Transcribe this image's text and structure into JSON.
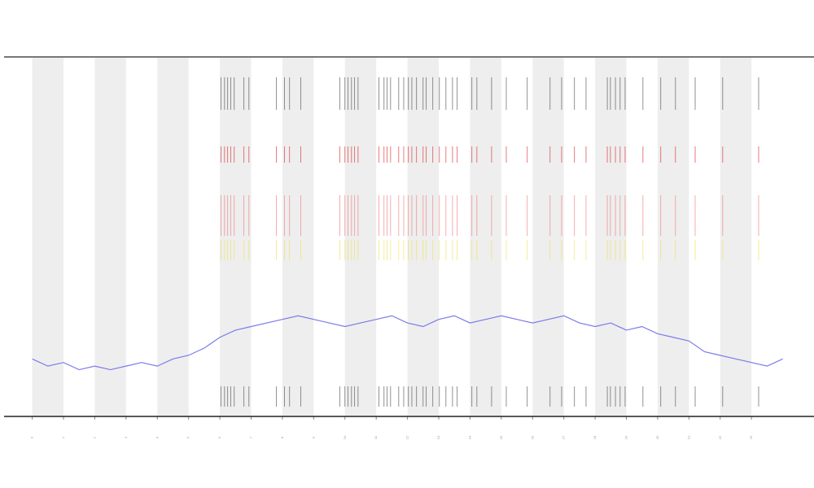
{
  "chart_data": {
    "type": "line",
    "x": [
      0,
      0.5,
      1,
      1.5,
      2,
      2.5,
      3,
      3.5,
      4,
      4.5,
      5,
      5.5,
      6,
      6.5,
      7,
      7.5,
      8,
      8.5,
      9,
      9.5,
      10,
      10.5,
      11,
      11.5,
      12,
      12.5,
      13,
      13.5,
      14,
      14.5,
      15,
      15.5,
      16,
      16.5,
      17,
      17.5,
      18,
      18.5,
      19,
      19.5,
      20,
      20.5,
      21,
      21.5,
      22,
      22.5,
      23,
      23.5,
      24
    ],
    "series": [
      {
        "color": "#7b7bea",
        "values": [
          16,
          14,
          15,
          13,
          14,
          13,
          14,
          15,
          14,
          16,
          17,
          19,
          22,
          24,
          25,
          26,
          27,
          28,
          27,
          26,
          25,
          26,
          27,
          28,
          26,
          25,
          27,
          28,
          26,
          27,
          28,
          27,
          26,
          27,
          28,
          26,
          25,
          26,
          24,
          25,
          23,
          22,
          21,
          18,
          17,
          16,
          15,
          14,
          16
        ]
      }
    ],
    "bands": [
      [
        0,
        1
      ],
      [
        2,
        3
      ],
      [
        4,
        5
      ],
      [
        6,
        7
      ],
      [
        8,
        9
      ],
      [
        10,
        11
      ],
      [
        12,
        13
      ],
      [
        14,
        15
      ],
      [
        16,
        17
      ],
      [
        18,
        19
      ],
      [
        20,
        21
      ],
      [
        22,
        23
      ]
    ],
    "band_color": "#eeeeee",
    "events": [
      6.04,
      6.15,
      6.25,
      6.35,
      6.46,
      6.77,
      6.93,
      7.81,
      8.07,
      8.23,
      8.59,
      9.84,
      10.0,
      10.1,
      10.21,
      10.31,
      10.42,
      11.09,
      11.25,
      11.35,
      11.46,
      11.72,
      11.88,
      12.03,
      12.14,
      12.29,
      12.5,
      12.6,
      12.81,
      13.02,
      13.23,
      13.44,
      13.59,
      14.06,
      14.22,
      14.69,
      15.16,
      15.83,
      16.56,
      16.93,
      17.34,
      17.71,
      18.39,
      18.49,
      18.65,
      18.8,
      18.96,
      19.53,
      20.1,
      20.57,
      21.2,
      22.08,
      23.23
    ],
    "event_colors": [
      "#555555",
      "#e03030",
      "#f08080",
      "#f0e060",
      "#555555"
    ],
    "xlim": [
      -0.9,
      25
    ],
    "ylim": [
      0,
      100
    ],
    "xticks": [
      0,
      1,
      2,
      3,
      4,
      5,
      6,
      7,
      8,
      9,
      10,
      11,
      12,
      13,
      14,
      15,
      16,
      17,
      18,
      19,
      20,
      21,
      22,
      23
    ]
  }
}
